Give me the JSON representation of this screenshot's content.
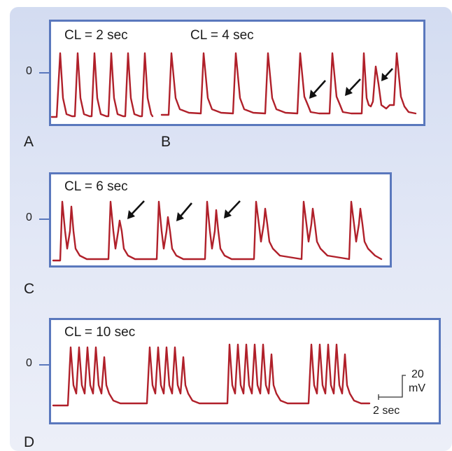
{
  "panels": {
    "a": {
      "letter": "A",
      "cl_label": "CL = 2 sec"
    },
    "b": {
      "letter": "B",
      "cl_label": "CL = 4 sec"
    },
    "c": {
      "letter": "C",
      "cl_label": "CL = 6 sec"
    },
    "d": {
      "letter": "D",
      "cl_label": "CL = 10 sec"
    }
  },
  "zero_label": "0",
  "scale_bar": {
    "y_value": "20",
    "y_unit": "mV",
    "x_label": "2 sec"
  },
  "colors": {
    "trace": "#b0202a",
    "box_border": "#5a78bd",
    "background": "#dde4f4"
  }
}
